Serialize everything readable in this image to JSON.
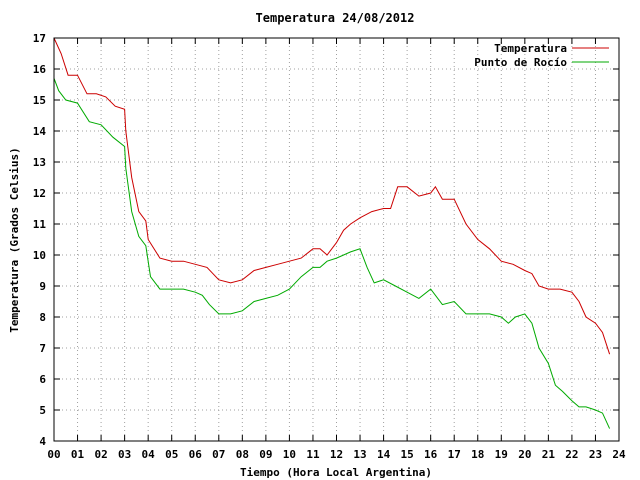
{
  "chart_data": {
    "type": "line",
    "title": "Temperatura 24/08/2012",
    "xlabel": "Tiempo (Hora Local Argentina)",
    "ylabel": "Temperatura (Grados Celsius)",
    "xlim": [
      0,
      24
    ],
    "ylim": [
      4,
      17
    ],
    "x_ticks": [
      "00",
      "01",
      "02",
      "03",
      "04",
      "05",
      "06",
      "07",
      "08",
      "09",
      "10",
      "11",
      "12",
      "13",
      "14",
      "15",
      "16",
      "17",
      "18",
      "19",
      "20",
      "21",
      "22",
      "23",
      "24"
    ],
    "y_ticks": [
      "4",
      "5",
      "6",
      "7",
      "8",
      "9",
      "10",
      "11",
      "12",
      "13",
      "14",
      "15",
      "16",
      "17"
    ],
    "grid": true,
    "legend_position": "top-right",
    "series": [
      {
        "name": "Temperatura",
        "color": "#cc0000",
        "x": [
          0.0,
          0.3,
          0.6,
          1.0,
          1.4,
          1.8,
          2.2,
          2.6,
          3.0,
          3.05,
          3.3,
          3.6,
          3.9,
          4.0,
          4.5,
          5.0,
          5.5,
          6.0,
          6.5,
          7.0,
          7.5,
          8.0,
          8.5,
          9.0,
          9.5,
          10.0,
          10.5,
          11.0,
          11.3,
          11.6,
          12.0,
          12.3,
          12.6,
          13.0,
          13.5,
          14.0,
          14.3,
          14.6,
          15.0,
          15.5,
          16.0,
          16.2,
          16.5,
          17.0,
          17.5,
          18.0,
          18.5,
          19.0,
          19.5,
          20.0,
          20.3,
          20.6,
          21.0,
          21.5,
          22.0,
          22.3,
          22.6,
          23.0,
          23.3,
          23.6
        ],
        "y": [
          17.0,
          16.5,
          15.8,
          15.8,
          15.2,
          15.2,
          15.1,
          14.8,
          14.7,
          14.0,
          12.5,
          11.4,
          11.1,
          10.5,
          9.9,
          9.8,
          9.8,
          9.7,
          9.6,
          9.2,
          9.1,
          9.2,
          9.5,
          9.6,
          9.7,
          9.8,
          9.9,
          10.2,
          10.2,
          10.0,
          10.4,
          10.8,
          11.0,
          11.2,
          11.4,
          11.5,
          11.5,
          12.2,
          12.2,
          11.9,
          12.0,
          12.2,
          11.8,
          11.8,
          11.0,
          10.5,
          10.2,
          9.8,
          9.7,
          9.5,
          9.4,
          9.0,
          8.9,
          8.9,
          8.8,
          8.5,
          8.0,
          7.8,
          7.5,
          6.8
        ]
      },
      {
        "name": "Punto de Rocío",
        "color": "#00aa00",
        "x": [
          0.0,
          0.2,
          0.5,
          1.0,
          1.5,
          2.0,
          2.5,
          3.0,
          3.05,
          3.3,
          3.6,
          3.9,
          4.1,
          4.5,
          5.0,
          5.5,
          6.0,
          6.3,
          6.6,
          7.0,
          7.5,
          8.0,
          8.5,
          9.0,
          9.5,
          10.0,
          10.5,
          11.0,
          11.3,
          11.6,
          12.0,
          12.3,
          12.6,
          13.0,
          13.3,
          13.6,
          14.0,
          14.5,
          15.0,
          15.5,
          16.0,
          16.5,
          17.0,
          17.5,
          18.0,
          18.5,
          19.0,
          19.3,
          19.6,
          20.0,
          20.3,
          20.6,
          21.0,
          21.3,
          21.6,
          22.0,
          22.3,
          22.6,
          23.0,
          23.3,
          23.6
        ],
        "y": [
          15.7,
          15.3,
          15.0,
          14.9,
          14.3,
          14.2,
          13.8,
          13.5,
          12.8,
          11.4,
          10.6,
          10.3,
          9.3,
          8.9,
          8.9,
          8.9,
          8.8,
          8.7,
          8.4,
          8.1,
          8.1,
          8.2,
          8.5,
          8.6,
          8.7,
          8.9,
          9.3,
          9.6,
          9.6,
          9.8,
          9.9,
          10.0,
          10.1,
          10.2,
          9.6,
          9.1,
          9.2,
          9.0,
          8.8,
          8.6,
          8.9,
          8.4,
          8.5,
          8.1,
          8.1,
          8.1,
          8.0,
          7.8,
          8.0,
          8.1,
          7.8,
          7.0,
          6.5,
          5.8,
          5.6,
          5.3,
          5.1,
          5.1,
          5.0,
          4.9,
          4.4
        ]
      }
    ]
  }
}
